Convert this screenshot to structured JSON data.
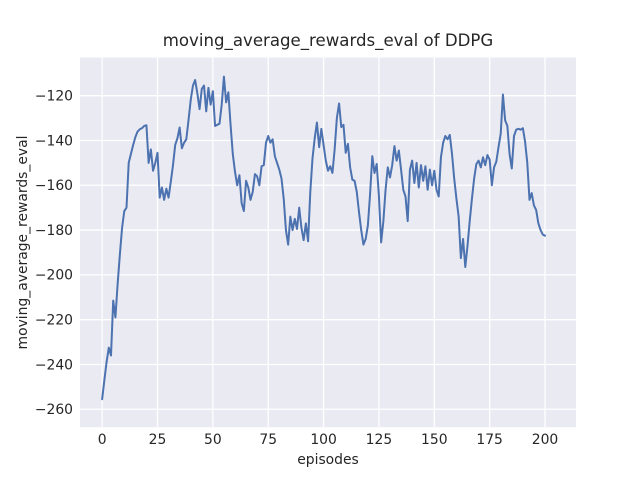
{
  "figure": {
    "background": "#ffffff",
    "kind": "matplotlib-seaborn-darkgrid"
  },
  "chart_data": {
    "type": "line",
    "title": "moving_average_rewards_eval of DDPG",
    "xlabel": "episodes",
    "ylabel": "moving_average_rewards_eval",
    "grid": true,
    "legend": "none",
    "plot_bg_color": "#eaeaf2",
    "grid_color": "#ffffff",
    "line_color": "#4c72b0",
    "text_color": "#262626",
    "xlim": [
      -10,
      214
    ],
    "ylim": [
      -268,
      -103
    ],
    "xticks": {
      "values": [
        0,
        25,
        50,
        75,
        100,
        125,
        150,
        175,
        200
      ],
      "labels": [
        "0",
        "25",
        "50",
        "75",
        "100",
        "125",
        "150",
        "175",
        "200"
      ]
    },
    "yticks": {
      "values": [
        -120,
        -140,
        -160,
        -180,
        -200,
        -220,
        -240,
        -260
      ],
      "labels": [
        "−120",
        "−140",
        "−160",
        "−180",
        "−200",
        "−220",
        "−240",
        "−260"
      ]
    },
    "series": [
      {
        "name": "moving_average_rewards_eval",
        "x_range": [
          0,
          200
        ],
        "x_step": 1,
        "y": [
          -255.5,
          -247,
          -239,
          -232.5,
          -236,
          -211.5,
          -219,
          -204,
          -191,
          -179,
          -171.5,
          -170,
          -150,
          -146,
          -142,
          -138.5,
          -136,
          -135,
          -134.5,
          -133.5,
          -133.2,
          -150,
          -144,
          -153.5,
          -150,
          -145.5,
          -165.5,
          -161,
          -166.5,
          -161.5,
          -165.5,
          -158.5,
          -151,
          -142,
          -139,
          -134.2,
          -143.5,
          -141,
          -139.5,
          -131,
          -122,
          -115.5,
          -113,
          -119,
          -126,
          -117,
          -115.5,
          -127,
          -116.5,
          -124,
          -118,
          -133.5,
          -133,
          -132.5,
          -124,
          -111.5,
          -123,
          -118.5,
          -133,
          -146,
          -154,
          -160,
          -155.5,
          -168,
          -171.5,
          -158,
          -161,
          -166.5,
          -163,
          -155,
          -156,
          -160,
          -151.5,
          -151,
          -141,
          -138,
          -141,
          -139.5,
          -147,
          -150,
          -153,
          -157,
          -166,
          -180,
          -186.5,
          -174,
          -180,
          -175,
          -179.5,
          -170,
          -179,
          -184.5,
          -177,
          -185,
          -163,
          -148,
          -139,
          -132,
          -143,
          -134.8,
          -142,
          -149,
          -153.5,
          -151.5,
          -154.5,
          -144,
          -130,
          -123.5,
          -134,
          -133,
          -145.5,
          -141.5,
          -152,
          -157.5,
          -158,
          -163,
          -172,
          -180,
          -186.5,
          -184,
          -178,
          -164,
          -147,
          -154.5,
          -150.5,
          -165,
          -185.5,
          -176,
          -162,
          -152,
          -156.5,
          -151,
          -142.5,
          -149,
          -144.5,
          -153,
          -162,
          -165,
          -176,
          -153,
          -149,
          -159,
          -150,
          -161,
          -151,
          -158,
          -151.5,
          -162,
          -153,
          -160,
          -153.5,
          -162,
          -165,
          -147.5,
          -141,
          -138,
          -139.5,
          -137.5,
          -146,
          -157,
          -166,
          -174,
          -192.5,
          -184,
          -196.5,
          -187,
          -176,
          -166,
          -157,
          -150.5,
          -149,
          -152,
          -147.5,
          -151,
          -146.5,
          -148.5,
          -160,
          -152,
          -149.5,
          -143,
          -137,
          -119.5,
          -131,
          -133.5,
          -146,
          -152.5,
          -138,
          -135.2,
          -134.8,
          -135.2,
          -134.5,
          -140.5,
          -150,
          -166.5,
          -163.5,
          -169,
          -171,
          -177,
          -180,
          -182,
          -182.5
        ]
      }
    ]
  }
}
